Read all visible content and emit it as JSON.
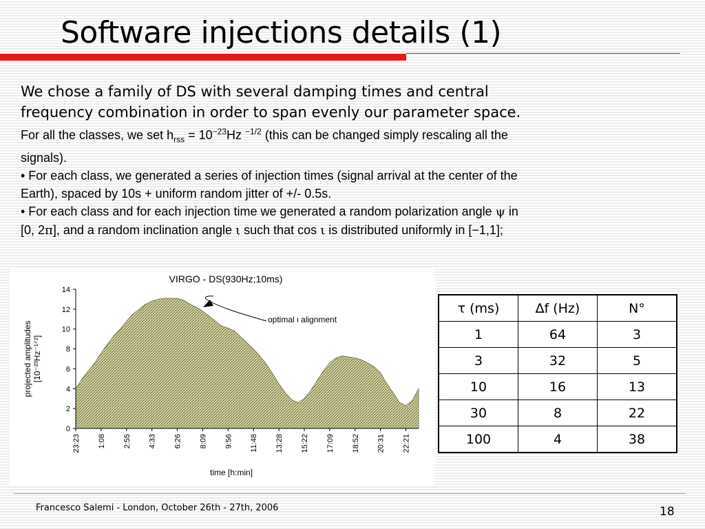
{
  "title": "Software injections details (1)",
  "paragraph1_line1": "We chose a family of DS with several damping times and central",
  "paragraph1_line2": "frequency combination in order to span evenly our parameter space.",
  "p2": {
    "a": "For all the classes, we set h",
    "sub": "rss",
    "b": " = 10",
    "exp1": "−23",
    "c": "Hz ",
    "exp2": "−1/2",
    "d": " (this can be changed simply rescaling all the",
    "line2": "signals)."
  },
  "bullet1_line1": "• For each class, we generated a series of injection times (signal arrival at the center of the",
  "bullet1_line2": "Earth), spaced by 10s + uniform random jitter of +/- 0.5s.",
  "bullet2": {
    "a": "• For each class and for each injection time we generated a random polarization angle ",
    "psi": "ψ",
    "b": " in",
    "c": "[0, 2",
    "pi": "π",
    "d": "], and a random inclination angle ",
    "iota1": "ι",
    "e": " such that cos ",
    "iota2": "ι",
    "f": " is distributed uniformly in [−1,1];"
  },
  "chart_data": {
    "type": "area",
    "title": "VIRGO - DS(930Hz;10ms)",
    "xlabel": "time [h:min]",
    "ylabel_line1": "projected amplitudes",
    "ylabel_line2": "[10⁻²³Hz⁻¹ᐟ²]",
    "ylim": [
      0,
      14
    ],
    "yticks": [
      0,
      2,
      4,
      6,
      8,
      10,
      12,
      14
    ],
    "xticks": [
      "23:23",
      "1:08",
      "2:55",
      "4:33",
      "6:26",
      "8:09",
      "9:56",
      "11:48",
      "13:28",
      "15:22",
      "17:09",
      "18:52",
      "20:31",
      "22:21"
    ],
    "annotation": "optimal ι alignment",
    "fill_color": "#d6d6a8",
    "hatch_color": "#6e6e3a",
    "x": [
      0,
      0.25,
      0.5,
      0.75,
      1,
      1.25,
      1.5,
      1.75,
      2,
      2.25,
      2.5,
      2.75,
      3,
      3.25,
      3.5,
      3.75,
      4,
      4.25,
      4.5,
      4.75,
      5,
      5.25,
      5.5,
      5.75,
      6,
      6.25,
      6.5,
      6.75,
      7,
      7.25,
      7.5,
      7.75,
      8,
      8.25,
      8.5,
      8.75,
      9,
      9.25,
      9.5,
      9.75,
      10,
      10.25,
      10.5,
      10.75,
      11,
      11.25,
      11.5,
      11.75,
      12,
      12.25,
      12.5,
      12.75,
      13,
      13.25,
      13.5
    ],
    "y": [
      4.0,
      5.0,
      5.8,
      6.6,
      7.6,
      8.5,
      9.3,
      10.0,
      10.8,
      11.5,
      12.0,
      12.5,
      12.8,
      13.0,
      13.1,
      13.1,
      13.1,
      12.9,
      12.5,
      12.2,
      11.8,
      11.3,
      10.8,
      10.3,
      10.1,
      9.8,
      9.2,
      8.6,
      8.0,
      7.3,
      6.5,
      5.5,
      4.5,
      3.6,
      2.9,
      2.6,
      3.0,
      3.8,
      4.8,
      5.8,
      6.6,
      7.1,
      7.3,
      7.2,
      7.1,
      6.9,
      6.6,
      6.2,
      5.6,
      4.5,
      3.6,
      2.6,
      2.3,
      2.8,
      4.0
    ]
  },
  "table": {
    "headers": [
      "τ (ms)",
      "∆f (Hz)",
      "N°"
    ],
    "rows": [
      [
        "1",
        "64",
        "3"
      ],
      [
        "3",
        "32",
        "5"
      ],
      [
        "10",
        "16",
        "13"
      ],
      [
        "30",
        "8",
        "22"
      ],
      [
        "100",
        "4",
        "38"
      ]
    ]
  },
  "footer": "Francesco Salemi - London, October 26th - 27th, 2006",
  "page_number": "18"
}
